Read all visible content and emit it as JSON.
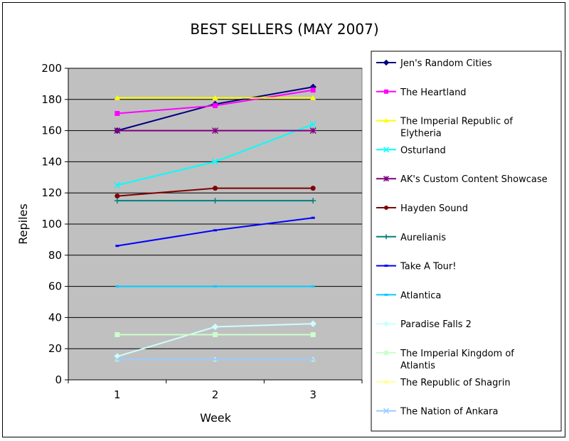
{
  "chart_data": {
    "type": "line",
    "title": "BEST SELLERS (MAY 2007)",
    "xlabel": "Week",
    "ylabel": "Repiles",
    "x": [
      1,
      2,
      3
    ],
    "ylim": [
      0,
      200
    ],
    "yticks": [
      0,
      20,
      40,
      60,
      80,
      100,
      120,
      140,
      160,
      180,
      200
    ],
    "grid": true,
    "plot_background": "#c0c0c0",
    "legend_position": "right",
    "series": [
      {
        "name": "Jen's Random Cities",
        "values": [
          160,
          177,
          188
        ],
        "color": "#000080",
        "marker": "diamond"
      },
      {
        "name": "The Heartland",
        "values": [
          171,
          176,
          186
        ],
        "color": "#ff00ff",
        "marker": "square"
      },
      {
        "name": "The Imperial Republic of Elytheria",
        "values": [
          181,
          181,
          181
        ],
        "color": "#ffff00",
        "marker": "triangle"
      },
      {
        "name": "Osturland",
        "values": [
          125,
          140,
          164
        ],
        "color": "#00ffff",
        "marker": "x"
      },
      {
        "name": "AK's Custom Content Showcase",
        "values": [
          160,
          160,
          160
        ],
        "color": "#800080",
        "marker": "star"
      },
      {
        "name": "Hayden Sound",
        "values": [
          118,
          123,
          123
        ],
        "color": "#800000",
        "marker": "circle"
      },
      {
        "name": "Aurelianis",
        "values": [
          115,
          115,
          115
        ],
        "color": "#008080",
        "marker": "plus"
      },
      {
        "name": "Take A Tour!",
        "values": [
          86,
          96,
          104
        ],
        "color": "#0000ff",
        "marker": "dash"
      },
      {
        "name": "Atlantica",
        "values": [
          60,
          60,
          60
        ],
        "color": "#00ccff",
        "marker": "dash"
      },
      {
        "name": "Paradise Falls 2",
        "values": [
          15,
          34,
          36
        ],
        "color": "#ccffff",
        "marker": "diamond"
      },
      {
        "name": "The Imperial Kingdom of Atlantis",
        "values": [
          29,
          29,
          29
        ],
        "color": "#ccffcc",
        "marker": "square"
      },
      {
        "name": "The Republic of Shagrin",
        "values": [
          13,
          13,
          13
        ],
        "color": "#ffff99",
        "marker": "triangle"
      },
      {
        "name": "The Nation of Ankara",
        "values": [
          13,
          13,
          13
        ],
        "color": "#99ccff",
        "marker": "x"
      }
    ]
  }
}
